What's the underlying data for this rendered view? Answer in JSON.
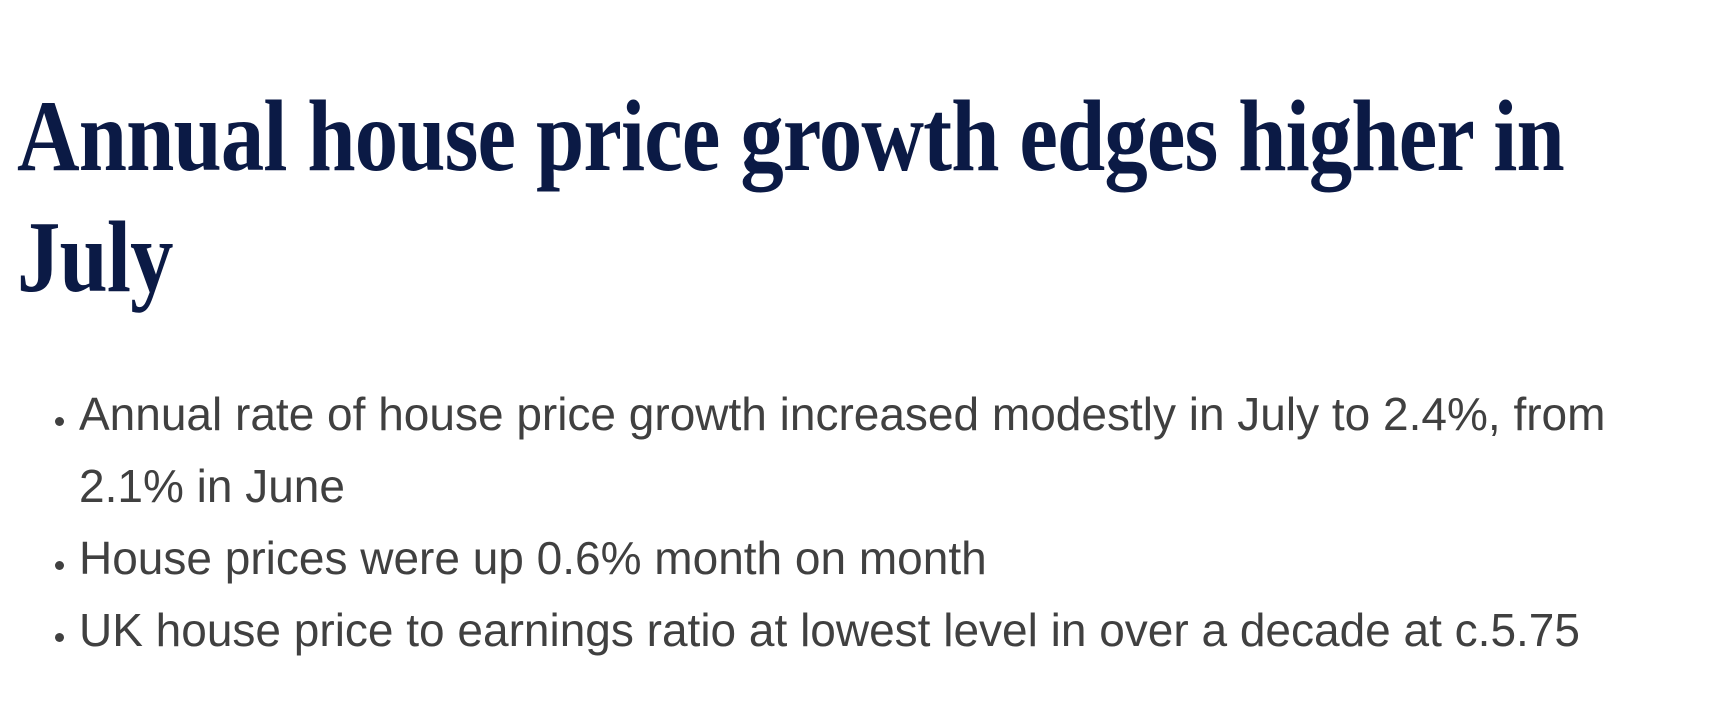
{
  "header": {
    "title": "Annual house price growth edges higher in July"
  },
  "list": {
    "items": [
      "Annual rate of house price growth increased modestly in July to 2.4%, from 2.1% in June",
      "House prices were up 0.6% month on month",
      "UK house price to earnings ratio at lowest level in over a decade at c.5.75"
    ]
  }
}
